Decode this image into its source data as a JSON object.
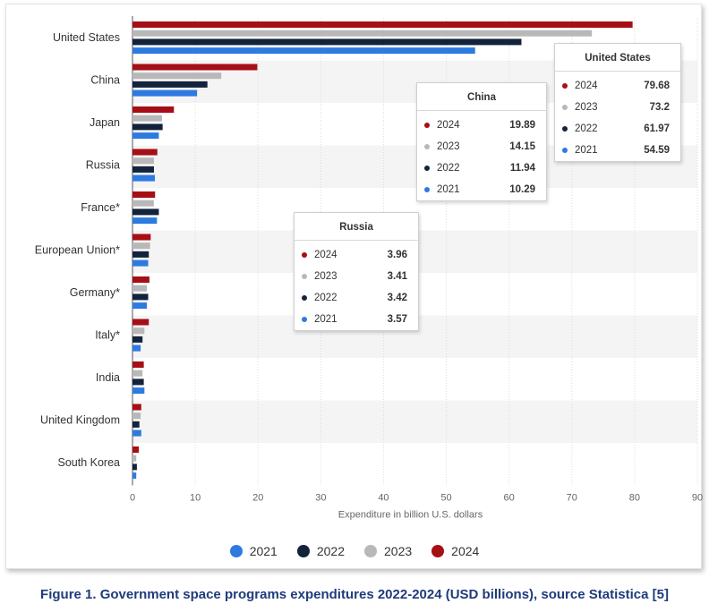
{
  "chart_data": {
    "type": "bar",
    "orientation": "horizontal",
    "categories": [
      "United States",
      "China",
      "Japan",
      "Russia",
      "France*",
      "European Union*",
      "Germany*",
      "Italy*",
      "India",
      "United Kingdom",
      "South Korea"
    ],
    "series": [
      {
        "name": "2024",
        "color": "#a50f15",
        "values": [
          79.68,
          19.89,
          6.6,
          3.96,
          3.6,
          2.9,
          2.7,
          2.6,
          1.8,
          1.4,
          1.0
        ]
      },
      {
        "name": "2023",
        "color": "#b8b8b8",
        "values": [
          73.2,
          14.15,
          4.7,
          3.41,
          3.4,
          2.8,
          2.3,
          1.9,
          1.6,
          1.3,
          0.6
        ]
      },
      {
        "name": "2022",
        "color": "#14233c",
        "values": [
          61.97,
          11.94,
          4.8,
          3.42,
          4.2,
          2.6,
          2.5,
          1.6,
          1.8,
          1.1,
          0.7
        ]
      },
      {
        "name": "2021",
        "color": "#2d7be0",
        "values": [
          54.59,
          10.29,
          4.2,
          3.57,
          3.9,
          2.5,
          2.3,
          1.3,
          1.9,
          1.4,
          0.6
        ]
      }
    ],
    "xlabel": "Expenditure in billion U.S. dollars",
    "xlim": [
      0,
      90
    ],
    "xticks": [
      0,
      10,
      20,
      30,
      40,
      50,
      60,
      70,
      80,
      90
    ],
    "grid": true,
    "legend_position": "bottom",
    "legend_order": [
      "2021",
      "2022",
      "2023",
      "2024"
    ]
  },
  "tooltips": [
    {
      "title": "United States",
      "rows": [
        {
          "year": "2024",
          "value": "79.68",
          "color": "#a50f15"
        },
        {
          "year": "2023",
          "value": "73.2",
          "color": "#b8b8b8"
        },
        {
          "year": "2022",
          "value": "61.97",
          "color": "#14233c"
        },
        {
          "year": "2021",
          "value": "54.59",
          "color": "#2d7be0"
        }
      ]
    },
    {
      "title": "China",
      "rows": [
        {
          "year": "2024",
          "value": "19.89",
          "color": "#a50f15"
        },
        {
          "year": "2023",
          "value": "14.15",
          "color": "#b8b8b8"
        },
        {
          "year": "2022",
          "value": "11.94",
          "color": "#14233c"
        },
        {
          "year": "2021",
          "value": "10.29",
          "color": "#2d7be0"
        }
      ]
    },
    {
      "title": "Russia",
      "rows": [
        {
          "year": "2024",
          "value": "3.96",
          "color": "#a50f15"
        },
        {
          "year": "2023",
          "value": "3.41",
          "color": "#b8b8b8"
        },
        {
          "year": "2022",
          "value": "3.42",
          "color": "#14233c"
        },
        {
          "year": "2021",
          "value": "3.57",
          "color": "#2d7be0"
        }
      ]
    }
  ],
  "caption": "Figure 1. Government space programs expenditures 2022-2024 (USD billions), source Statistica [5]"
}
